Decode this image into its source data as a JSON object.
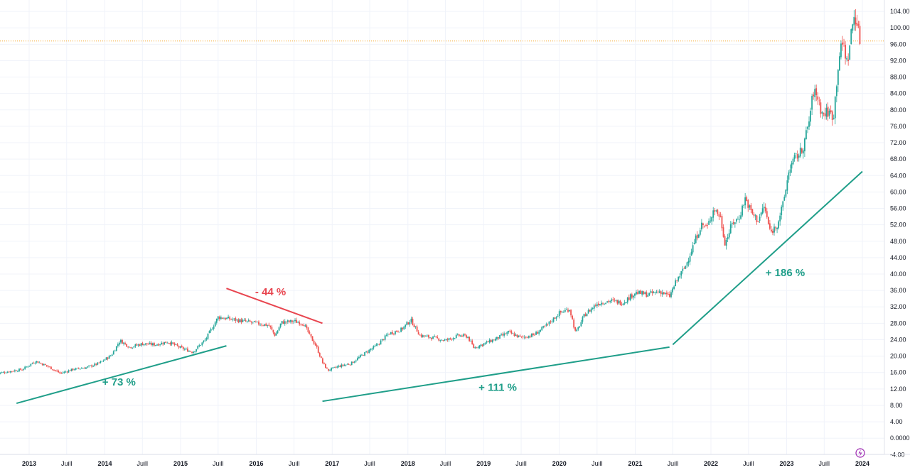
{
  "chart_data": {
    "type": "candlestick",
    "ylim": [
      -4,
      106
    ],
    "yticks": [
      -4,
      0,
      4,
      8,
      12,
      16,
      20,
      24,
      28,
      32,
      36,
      40,
      44,
      48,
      52,
      56,
      60,
      64,
      68,
      72,
      76,
      80,
      84,
      88,
      92,
      96,
      100,
      104
    ],
    "ytick_labels": [
      "-4.00",
      "0.0000",
      "4.00",
      "8.00",
      "12.00",
      "16.00",
      "20.00",
      "24.00",
      "28.00",
      "32.00",
      "36.00",
      "40.00",
      "44.00",
      "48.00",
      "52.00",
      "56.00",
      "60.00",
      "64.00",
      "68.00",
      "72.00",
      "76.00",
      "80.00",
      "84.00",
      "88.00",
      "92.00",
      "96.00",
      "100.00",
      "104.00"
    ],
    "xlim": [
      "2012-07-15",
      "2024-02-15"
    ],
    "xticks": [
      {
        "date": "2013-01-01",
        "label": "2013",
        "bold": true
      },
      {
        "date": "2013-07-01",
        "label": "Juill",
        "bold": false
      },
      {
        "date": "2014-01-01",
        "label": "2014",
        "bold": true
      },
      {
        "date": "2014-07-01",
        "label": "Juill",
        "bold": false
      },
      {
        "date": "2015-01-01",
        "label": "2015",
        "bold": true
      },
      {
        "date": "2015-07-01",
        "label": "Juill",
        "bold": false
      },
      {
        "date": "2016-01-01",
        "label": "2016",
        "bold": true
      },
      {
        "date": "2016-07-01",
        "label": "Juill",
        "bold": false
      },
      {
        "date": "2017-01-01",
        "label": "2017",
        "bold": true
      },
      {
        "date": "2017-07-01",
        "label": "Juill",
        "bold": false
      },
      {
        "date": "2018-01-01",
        "label": "2018",
        "bold": true
      },
      {
        "date": "2018-07-01",
        "label": "Juill",
        "bold": false
      },
      {
        "date": "2019-01-01",
        "label": "2019",
        "bold": true
      },
      {
        "date": "2019-07-01",
        "label": "Juill",
        "bold": false
      },
      {
        "date": "2020-01-01",
        "label": "2020",
        "bold": true
      },
      {
        "date": "2020-07-01",
        "label": "Juill",
        "bold": false
      },
      {
        "date": "2021-01-01",
        "label": "2021",
        "bold": true
      },
      {
        "date": "2021-07-01",
        "label": "Juill",
        "bold": false
      },
      {
        "date": "2022-01-01",
        "label": "2022",
        "bold": true
      },
      {
        "date": "2022-07-01",
        "label": "Juill",
        "bold": false
      },
      {
        "date": "2023-01-01",
        "label": "2023",
        "bold": true
      },
      {
        "date": "2023-07-01",
        "label": "Juill",
        "bold": false
      },
      {
        "date": "2024-01-01",
        "label": "2024",
        "bold": true
      }
    ],
    "price_line": 96.8,
    "price_line_color": "#f5a623",
    "up_color": "#26a69a",
    "down_color": "#ef5350",
    "grid": true,
    "series": [
      {
        "date": "2012-08-01",
        "value": 15.8
      },
      {
        "date": "2012-10-01",
        "value": 16.3
      },
      {
        "date": "2012-12-01",
        "value": 16.8
      },
      {
        "date": "2013-02-01",
        "value": 18.8
      },
      {
        "date": "2013-04-01",
        "value": 17.5
      },
      {
        "date": "2013-06-01",
        "value": 15.8
      },
      {
        "date": "2013-08-01",
        "value": 16.8
      },
      {
        "date": "2013-10-01",
        "value": 17.2
      },
      {
        "date": "2013-12-01",
        "value": 18.2
      },
      {
        "date": "2014-02-01",
        "value": 20.2
      },
      {
        "date": "2014-03-15",
        "value": 23.8
      },
      {
        "date": "2014-05-01",
        "value": 22.2
      },
      {
        "date": "2014-07-01",
        "value": 23.0
      },
      {
        "date": "2014-09-01",
        "value": 22.8
      },
      {
        "date": "2014-11-01",
        "value": 23.5
      },
      {
        "date": "2015-01-01",
        "value": 22.0
      },
      {
        "date": "2015-03-01",
        "value": 21.0
      },
      {
        "date": "2015-05-01",
        "value": 24.0
      },
      {
        "date": "2015-07-01",
        "value": 29.5
      },
      {
        "date": "2015-09-01",
        "value": 29.0
      },
      {
        "date": "2015-11-01",
        "value": 28.5
      },
      {
        "date": "2016-01-01",
        "value": 28.0
      },
      {
        "date": "2016-03-01",
        "value": 27.5
      },
      {
        "date": "2016-04-01",
        "value": 25.0
      },
      {
        "date": "2016-05-01",
        "value": 28.2
      },
      {
        "date": "2016-07-01",
        "value": 28.5
      },
      {
        "date": "2016-08-15",
        "value": 28.0
      },
      {
        "date": "2016-09-15",
        "value": 25.0
      },
      {
        "date": "2016-10-15",
        "value": 22.5
      },
      {
        "date": "2016-11-15",
        "value": 18.5
      },
      {
        "date": "2016-12-10",
        "value": 16.5
      },
      {
        "date": "2017-02-01",
        "value": 17.5
      },
      {
        "date": "2017-04-01",
        "value": 18.2
      },
      {
        "date": "2017-06-01",
        "value": 20.5
      },
      {
        "date": "2017-08-01",
        "value": 22.5
      },
      {
        "date": "2017-10-01",
        "value": 25.5
      },
      {
        "date": "2017-12-01",
        "value": 26.5
      },
      {
        "date": "2018-01-15",
        "value": 28.8
      },
      {
        "date": "2018-03-01",
        "value": 25.0
      },
      {
        "date": "2018-05-01",
        "value": 24.5
      },
      {
        "date": "2018-07-01",
        "value": 23.8
      },
      {
        "date": "2018-09-01",
        "value": 25.0
      },
      {
        "date": "2018-10-15",
        "value": 24.8
      },
      {
        "date": "2018-11-15",
        "value": 22.0
      },
      {
        "date": "2019-01-01",
        "value": 23.0
      },
      {
        "date": "2019-03-01",
        "value": 24.2
      },
      {
        "date": "2019-05-01",
        "value": 25.8
      },
      {
        "date": "2019-07-01",
        "value": 24.5
      },
      {
        "date": "2019-09-01",
        "value": 25.2
      },
      {
        "date": "2019-11-01",
        "value": 27.5
      },
      {
        "date": "2020-01-01",
        "value": 30.5
      },
      {
        "date": "2020-02-20",
        "value": 31.5
      },
      {
        "date": "2020-03-20",
        "value": 25.5
      },
      {
        "date": "2020-05-01",
        "value": 30.0
      },
      {
        "date": "2020-07-01",
        "value": 32.8
      },
      {
        "date": "2020-09-01",
        "value": 33.5
      },
      {
        "date": "2020-11-01",
        "value": 33.0
      },
      {
        "date": "2021-01-01",
        "value": 35.5
      },
      {
        "date": "2021-03-01",
        "value": 35.0
      },
      {
        "date": "2021-05-01",
        "value": 35.8
      },
      {
        "date": "2021-06-15",
        "value": 34.5
      },
      {
        "date": "2021-07-15",
        "value": 38.0
      },
      {
        "date": "2021-09-01",
        "value": 42.0
      },
      {
        "date": "2021-10-15",
        "value": 48.0
      },
      {
        "date": "2021-11-15",
        "value": 52.0
      },
      {
        "date": "2021-12-15",
        "value": 51.5
      },
      {
        "date": "2022-01-15",
        "value": 56.0
      },
      {
        "date": "2022-02-15",
        "value": 54.0
      },
      {
        "date": "2022-03-10",
        "value": 47.5
      },
      {
        "date": "2022-04-15",
        "value": 52.5
      },
      {
        "date": "2022-05-15",
        "value": 53.5
      },
      {
        "date": "2022-06-15",
        "value": 58.5
      },
      {
        "date": "2022-07-15",
        "value": 55.0
      },
      {
        "date": "2022-08-15",
        "value": 53.0
      },
      {
        "date": "2022-09-15",
        "value": 56.5
      },
      {
        "date": "2022-10-15",
        "value": 50.0
      },
      {
        "date": "2022-11-15",
        "value": 52.0
      },
      {
        "date": "2022-12-15",
        "value": 57.0
      },
      {
        "date": "2023-01-15",
        "value": 66.0
      },
      {
        "date": "2023-02-15",
        "value": 68.5
      },
      {
        "date": "2023-03-15",
        "value": 70.0
      },
      {
        "date": "2023-04-15",
        "value": 76.0
      },
      {
        "date": "2023-05-10",
        "value": 84.5
      },
      {
        "date": "2023-06-01",
        "value": 83.0
      },
      {
        "date": "2023-06-20",
        "value": 79.0
      },
      {
        "date": "2023-07-20",
        "value": 79.5
      },
      {
        "date": "2023-08-15",
        "value": 78.5
      },
      {
        "date": "2023-09-10",
        "value": 93.0
      },
      {
        "date": "2023-10-01",
        "value": 96.5
      },
      {
        "date": "2023-10-20",
        "value": 91.0
      },
      {
        "date": "2023-11-10",
        "value": 99.5
      },
      {
        "date": "2023-11-25",
        "value": 103.5
      },
      {
        "date": "2023-12-10",
        "value": 100.0
      },
      {
        "date": "2023-12-20",
        "value": 97.0
      }
    ],
    "annotations": [
      {
        "label": "+ 73 %",
        "color": "#1f9e89",
        "line": {
          "x1": "2012-11-01",
          "y1": 8.5,
          "x2": "2015-08-10",
          "y2": 22.5
        },
        "text_at": {
          "date": "2014-03-10",
          "value": 12.8
        }
      },
      {
        "label": "- 44 %",
        "color": "#e8454f",
        "line": {
          "x1": "2015-08-10",
          "y1": 36.5,
          "x2": "2016-11-15",
          "y2": 28.0
        },
        "text_at": {
          "date": "2016-03-10",
          "value": 34.8
        }
      },
      {
        "label": "+ 111 %",
        "color": "#1f9e89",
        "line": {
          "x1": "2016-11-15",
          "y1": 9.0,
          "x2": "2021-06-15",
          "y2": 22.2
        },
        "text_at": {
          "date": "2019-03-10",
          "value": 11.5
        }
      },
      {
        "label": "+ 186 %",
        "color": "#1f9e89",
        "line": {
          "x1": "2021-07-01",
          "y1": 22.8,
          "x2": "2024-01-01",
          "y2": 65.0
        },
        "text_at": {
          "date": "2022-12-25",
          "value": 39.5
        }
      }
    ]
  },
  "icons": {
    "corner_icon": "lightning-icon"
  }
}
